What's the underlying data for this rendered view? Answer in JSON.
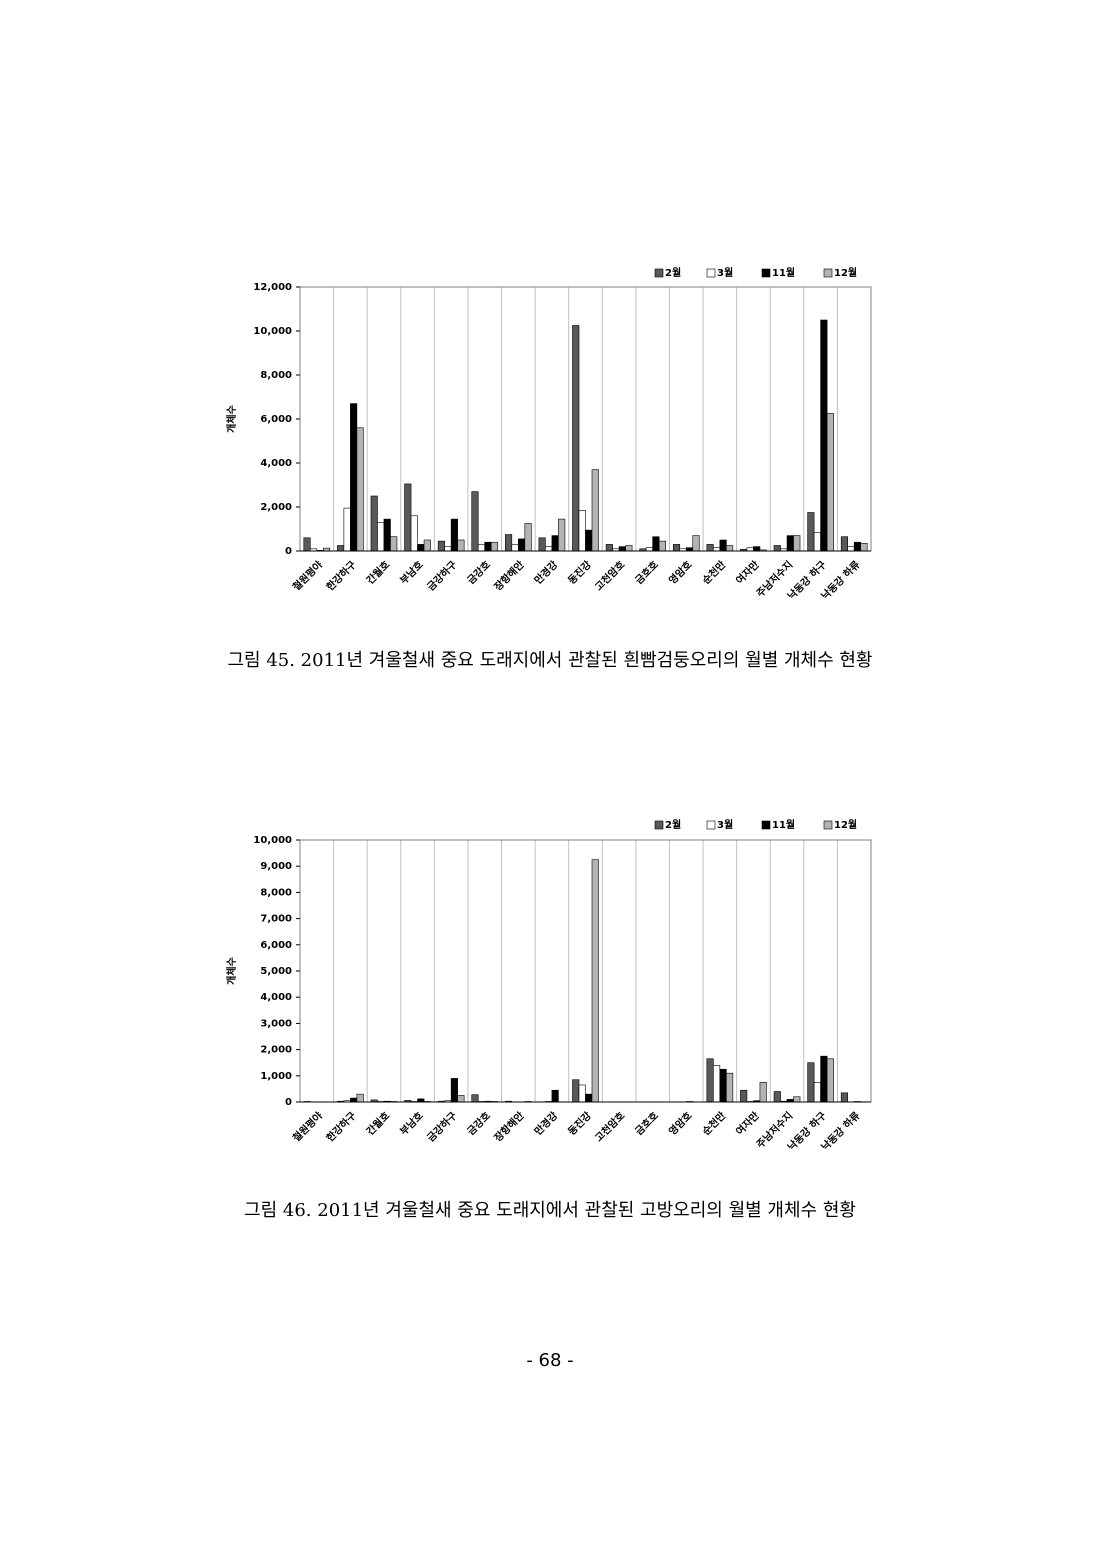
{
  "chart_data": [
    {
      "type": "bar",
      "y_label": "개체수",
      "caption": "그림 45. 2011년 겨울철새 중요 도래지에서 관찰된 흰빰검둥오리의 월별 개체수 현황",
      "categories": [
        "철원평야",
        "한강하구",
        "간월호",
        "부남호",
        "금강하구",
        "금강호",
        "장항해안",
        "만경강",
        "동진강",
        "고천암호",
        "금호호",
        "영암호",
        "순천만",
        "여자만",
        "주남저수지",
        "낙동강 하구",
        "낙동강 하류"
      ],
      "series": [
        {
          "name": "2월",
          "color": "#595959",
          "values": [
            600,
            250,
            2500,
            3050,
            450,
            2700,
            750,
            600,
            10250,
            300,
            100,
            300,
            300,
            80,
            250,
            1750,
            650
          ]
        },
        {
          "name": "3월",
          "color": "#ffffff",
          "values": [
            100,
            1950,
            1300,
            1600,
            200,
            300,
            300,
            200,
            1850,
            100,
            150,
            100,
            150,
            150,
            100,
            850,
            200
          ]
        },
        {
          "name": "11월",
          "color": "#000000",
          "values": [
            30,
            6700,
            1450,
            300,
            1450,
            400,
            550,
            700,
            950,
            200,
            650,
            150,
            500,
            200,
            700,
            10500,
            400
          ]
        },
        {
          "name": "12월",
          "color": "#b3b3b3",
          "values": [
            130,
            5600,
            650,
            500,
            500,
            400,
            1250,
            1450,
            3700,
            250,
            450,
            700,
            250,
            50,
            700,
            6250,
            350
          ]
        }
      ],
      "ylim": [
        0,
        12000
      ],
      "yticks": [
        0,
        {
          "value": 2000,
          "label": "2,000"
        },
        {
          "value": 4000,
          "label": "4,000"
        },
        {
          "value": 6000,
          "label": "6,000"
        },
        {
          "value": 8000,
          "label": "8,000"
        },
        {
          "value": 10000,
          "label": "10,000"
        },
        {
          "value": 12000,
          "label": "12,000"
        }
      ],
      "grid": true,
      "legend": "top-right"
    },
    {
      "type": "bar",
      "y_label": "개체수",
      "caption": "그림 46. 2011년 겨울철새 중요 도래지에서 관찰된 고방오리의 월별 개체수 현황",
      "categories": [
        "철원평야",
        "한강하구",
        "간월호",
        "부남호",
        "금강하구",
        "금강호",
        "장항해안",
        "만경강",
        "동진강",
        "고천암호",
        "금호호",
        "영암호",
        "순천만",
        "여자만",
        "주남저수지",
        "낙동강 하구",
        "낙동강 하류"
      ],
      "series": [
        {
          "name": "2월",
          "color": "#595959",
          "values": [
            20,
            30,
            80,
            60,
            30,
            280,
            30,
            0,
            850,
            0,
            0,
            0,
            1650,
            450,
            400,
            1500,
            350
          ]
        },
        {
          "name": "3월",
          "color": "#ffffff",
          "values": [
            0,
            50,
            20,
            20,
            50,
            20,
            0,
            20,
            650,
            0,
            0,
            0,
            1400,
            20,
            30,
            750,
            0
          ]
        },
        {
          "name": "11월",
          "color": "#000000",
          "values": [
            0,
            150,
            30,
            120,
            900,
            30,
            0,
            450,
            300,
            0,
            0,
            20,
            1250,
            50,
            100,
            1750,
            20
          ]
        },
        {
          "name": "12월",
          "color": "#b3b3b3",
          "values": [
            0,
            300,
            20,
            20,
            250,
            20,
            20,
            0,
            9250,
            0,
            0,
            0,
            1100,
            750,
            200,
            1650,
            10
          ]
        }
      ],
      "ylim": [
        0,
        10000
      ],
      "yticks": [
        0,
        {
          "value": 1000,
          "label": "1,000"
        },
        {
          "value": 2000,
          "label": "2,000"
        },
        {
          "value": 3000,
          "label": "3,000"
        },
        {
          "value": 4000,
          "label": "4,000"
        },
        {
          "value": 5000,
          "label": "5,000"
        },
        {
          "value": 6000,
          "label": "6,000"
        },
        {
          "value": 7000,
          "label": "7,000"
        },
        {
          "value": 8000,
          "label": "8,000"
        },
        {
          "value": 9000,
          "label": "9,000"
        },
        {
          "value": 10000,
          "label": "10,000"
        }
      ],
      "grid": true,
      "legend": "top-right"
    }
  ],
  "page_number": "- 68 -"
}
